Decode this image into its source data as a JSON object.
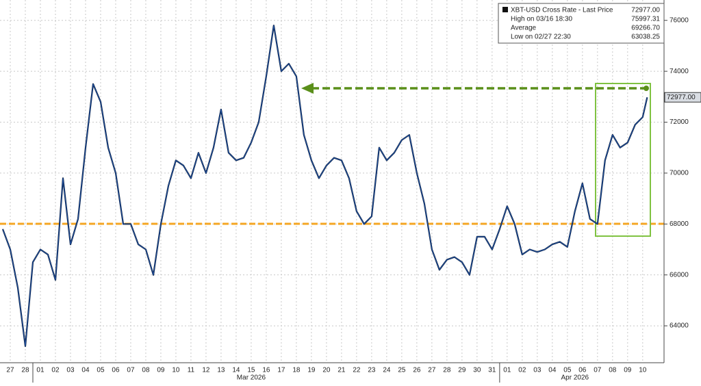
{
  "chart_data": {
    "type": "line",
    "legend": {
      "title": "XBT-USD Cross Rate - Last Price",
      "title_value": "72977.00",
      "rows": [
        {
          "label": "High on 03/16 18:30",
          "value": "75997.31"
        },
        {
          "label": "Average",
          "value": "69266.70"
        },
        {
          "label": "Low on 02/27 22:30",
          "value": "63038.25"
        }
      ]
    },
    "last_price_label": {
      "value": 72977,
      "label": "72977.00"
    },
    "x": [
      0,
      0.5,
      1,
      1.5,
      2,
      2.5,
      3,
      3.5,
      4,
      4.5,
      5,
      5.5,
      6,
      6.5,
      7,
      7.5,
      8,
      8.5,
      9,
      9.5,
      10,
      10.5,
      11,
      11.5,
      12,
      12.5,
      13,
      13.5,
      14,
      14.5,
      15,
      15.5,
      16,
      16.5,
      17,
      17.5,
      18,
      18.5,
      19,
      19.5,
      20,
      20.5,
      21,
      21.5,
      22,
      22.5,
      23,
      23.5,
      24,
      24.5,
      25,
      25.5,
      26,
      26.5,
      27,
      27.5,
      28,
      28.5,
      29,
      29.5,
      30,
      30.5,
      31,
      31.5,
      32,
      32.5,
      33,
      33.5,
      34,
      34.5,
      35,
      35.5,
      36,
      36.5,
      37,
      37.5,
      38,
      38.5,
      39,
      39.5,
      40,
      40.5,
      41,
      41.5,
      42,
      42.5,
      42.8
    ],
    "series": [
      {
        "name": "XBT-USD Cross Rate",
        "color": "#1f4e9c",
        "values": [
          67800,
          67000,
          65500,
          63200,
          66500,
          67000,
          66800,
          65800,
          69800,
          67200,
          68200,
          71000,
          73500,
          72800,
          71000,
          70000,
          68000,
          68000,
          67200,
          67000,
          66000,
          68000,
          69500,
          70500,
          70300,
          69800,
          70800,
          70000,
          71000,
          72500,
          70800,
          70500,
          70600,
          71200,
          72000,
          73800,
          75800,
          74000,
          74300,
          73800,
          71500,
          70500,
          69800,
          70300,
          70600,
          70500,
          69800,
          68500,
          68000,
          68300,
          71000,
          70500,
          70800,
          71300,
          71500,
          70000,
          68800,
          67000,
          66200,
          66600,
          66700,
          66500,
          66000,
          67500,
          67500,
          67000,
          67800,
          68700,
          68000,
          66800,
          67000,
          66900,
          67000,
          67200,
          67300,
          67100,
          68500,
          69600,
          68200,
          68000,
          70500,
          71500,
          71000,
          71200,
          71900,
          72200,
          72977
        ]
      }
    ],
    "xlim": [
      0,
      44.1
    ],
    "xticks": [
      {
        "value": 0.5,
        "label": "27"
      },
      {
        "value": 1.5,
        "label": "28"
      },
      {
        "value": 2.5,
        "label": "01"
      },
      {
        "value": 3.5,
        "label": "02"
      },
      {
        "value": 4.5,
        "label": "03"
      },
      {
        "value": 5.5,
        "label": "04"
      },
      {
        "value": 6.5,
        "label": "05"
      },
      {
        "value": 7.5,
        "label": "06"
      },
      {
        "value": 8.5,
        "label": "07"
      },
      {
        "value": 9.5,
        "label": "08"
      },
      {
        "value": 10.5,
        "label": "09"
      },
      {
        "value": 11.5,
        "label": "10"
      },
      {
        "value": 12.5,
        "label": "11"
      },
      {
        "value": 13.5,
        "label": "12"
      },
      {
        "value": 14.5,
        "label": "13"
      },
      {
        "value": 15.5,
        "label": "14"
      },
      {
        "value": 16.5,
        "label": "15"
      },
      {
        "value": 17.5,
        "label": "16"
      },
      {
        "value": 18.5,
        "label": "17"
      },
      {
        "value": 19.5,
        "label": "18"
      },
      {
        "value": 20.5,
        "label": "19"
      },
      {
        "value": 21.5,
        "label": "20"
      },
      {
        "value": 22.5,
        "label": "21"
      },
      {
        "value": 23.5,
        "label": "22"
      },
      {
        "value": 24.5,
        "label": "23"
      },
      {
        "value": 25.5,
        "label": "24"
      },
      {
        "value": 26.5,
        "label": "25"
      },
      {
        "value": 27.5,
        "label": "26"
      },
      {
        "value": 28.5,
        "label": "27"
      },
      {
        "value": 29.5,
        "label": "28"
      },
      {
        "value": 30.5,
        "label": "29"
      },
      {
        "value": 31.5,
        "label": "30"
      },
      {
        "value": 32.5,
        "label": "31"
      },
      {
        "value": 33.5,
        "label": "01"
      },
      {
        "value": 34.5,
        "label": "02"
      },
      {
        "value": 35.5,
        "label": "03"
      },
      {
        "value": 36.5,
        "label": "04"
      },
      {
        "value": 37.5,
        "label": "05"
      },
      {
        "value": 38.5,
        "label": "06"
      },
      {
        "value": 39.5,
        "label": "07"
      },
      {
        "value": 40.5,
        "label": "08"
      },
      {
        "value": 41.5,
        "label": "09"
      },
      {
        "value": 42.5,
        "label": "10"
      }
    ],
    "month_labels": [
      {
        "value": 16.5,
        "label": "Mar 2026"
      },
      {
        "value": 38,
        "label": "Apr 2026"
      }
    ],
    "month_starts": [
      2,
      33
    ],
    "ylim": [
      62550,
      76800
    ],
    "yticks": [
      64000,
      66000,
      68000,
      70000,
      72000,
      74000,
      76000
    ],
    "grid": true
  }
}
